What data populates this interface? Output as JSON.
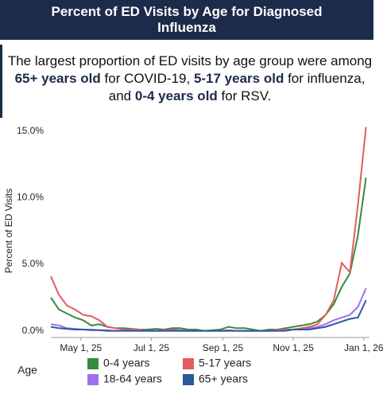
{
  "header": {
    "title": "Percent of ED Visits by Age for Diagnosed Influenza"
  },
  "summary": [
    {
      "text": "The largest proportion of ED visits by age group were among ",
      "bold": false
    },
    {
      "text": "65+ years old",
      "bold": true
    },
    {
      "text": " for COVID-19, ",
      "bold": false
    },
    {
      "text": "5-17 years old",
      "bold": true
    },
    {
      "text": " for influenza, and ",
      "bold": false
    },
    {
      "text": "0-4 years old",
      "bold": true
    },
    {
      "text": " for RSV.",
      "bold": false
    }
  ],
  "chart_data": {
    "type": "line",
    "y_label": "Percent of ED Visits",
    "legend_title": "Age",
    "x": [
      "2025-04-05",
      "2025-04-12",
      "2025-04-19",
      "2025-04-26",
      "2025-05-03",
      "2025-05-10",
      "2025-05-17",
      "2025-05-24",
      "2025-05-31",
      "2025-06-07",
      "2025-06-14",
      "2025-06-21",
      "2025-06-28",
      "2025-07-05",
      "2025-07-12",
      "2025-07-19",
      "2025-07-26",
      "2025-08-02",
      "2025-08-09",
      "2025-08-16",
      "2025-08-23",
      "2025-08-30",
      "2025-09-06",
      "2025-09-13",
      "2025-09-20",
      "2025-09-27",
      "2025-10-04",
      "2025-10-11",
      "2025-10-18",
      "2025-10-25",
      "2025-11-01",
      "2025-11-08",
      "2025-11-15",
      "2025-11-22",
      "2025-11-29",
      "2025-12-06",
      "2025-12-13",
      "2025-12-20",
      "2025-12-27",
      "2026-01-03"
    ],
    "xlim": [
      "2025-04-05",
      "2026-01-06"
    ],
    "xticks": [
      {
        "value": "2025-05-01",
        "label": "May 1, 25"
      },
      {
        "value": "2025-07-01",
        "label": "Jul 1, 25"
      },
      {
        "value": "2025-09-01",
        "label": "Sep 1, 25"
      },
      {
        "value": "2025-11-01",
        "label": "Nov 1, 25"
      },
      {
        "value": "2026-01-01",
        "label": "Jan 1, 26"
      }
    ],
    "ylim": [
      -0.5,
      16
    ],
    "yticks": [
      {
        "value": 0,
        "label": "0.0%"
      },
      {
        "value": 5,
        "label": "5.0%"
      },
      {
        "value": 10,
        "label": "10.0%"
      },
      {
        "value": 15,
        "label": "15.0%"
      }
    ],
    "series": [
      {
        "name": "0-4 years",
        "color": "#3a8a3f",
        "values": [
          2.5,
          1.6,
          1.3,
          1.0,
          0.8,
          0.4,
          0.5,
          0.3,
          0.2,
          0.2,
          0.15,
          0.1,
          0.1,
          0.15,
          0.1,
          0.2,
          0.2,
          0.1,
          0.1,
          0.0,
          0.05,
          0.1,
          0.3,
          0.2,
          0.2,
          0.1,
          0.0,
          0.1,
          0.1,
          0.2,
          0.3,
          0.4,
          0.5,
          0.7,
          1.2,
          2.0,
          3.3,
          4.3,
          7.2,
          11.5
        ]
      },
      {
        "name": "5-17 years",
        "color": "#e25c5c",
        "values": [
          4.1,
          2.7,
          1.9,
          1.6,
          1.2,
          1.1,
          0.8,
          0.3,
          0.2,
          0.1,
          0.1,
          0.1,
          0.0,
          0.0,
          0.05,
          0.1,
          0.05,
          0.0,
          0.0,
          0.0,
          0.0,
          0.0,
          0.05,
          0.0,
          0.0,
          0.0,
          0.0,
          0.0,
          0.1,
          0.1,
          0.1,
          0.2,
          0.3,
          0.5,
          1.2,
          2.3,
          5.1,
          4.4,
          9.5,
          15.3
        ]
      },
      {
        "name": "18-64 years",
        "color": "#a070e8",
        "values": [
          0.5,
          0.4,
          0.2,
          0.15,
          0.1,
          0.1,
          0.05,
          0.05,
          0.0,
          0.0,
          0.0,
          0.0,
          0.0,
          0.0,
          0.0,
          0.0,
          0.0,
          0.0,
          0.0,
          0.0,
          0.0,
          0.0,
          0.0,
          0.0,
          0.0,
          0.0,
          0.0,
          0.0,
          0.0,
          0.05,
          0.1,
          0.1,
          0.2,
          0.3,
          0.5,
          0.8,
          1.0,
          1.2,
          1.8,
          3.2
        ]
      },
      {
        "name": "65+ years",
        "color": "#2b5a9c",
        "values": [
          0.3,
          0.2,
          0.15,
          0.1,
          0.1,
          0.05,
          0.05,
          0.0,
          0.0,
          0.0,
          0.0,
          0.0,
          0.0,
          0.0,
          0.0,
          0.0,
          0.0,
          0.0,
          0.0,
          0.0,
          0.0,
          0.0,
          0.0,
          0.0,
          0.0,
          0.0,
          0.0,
          0.0,
          0.0,
          0.0,
          0.1,
          0.1,
          0.1,
          0.2,
          0.3,
          0.5,
          0.7,
          0.9,
          1.0,
          2.3
        ]
      }
    ]
  }
}
